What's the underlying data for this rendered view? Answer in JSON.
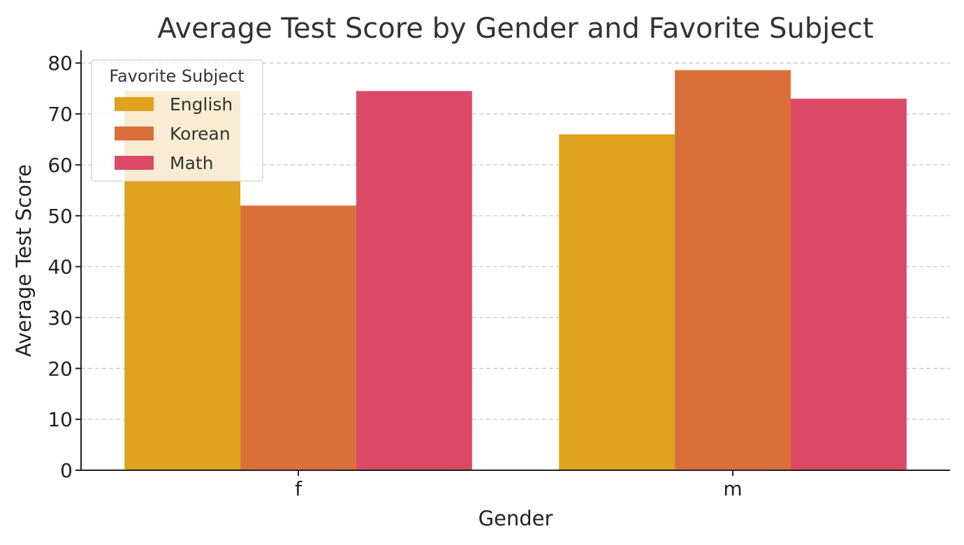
{
  "chart_data": {
    "type": "bar",
    "title": "Average Test Score by Gender and Favorite Subject",
    "xlabel": "Gender",
    "ylabel": "Average Test Score",
    "categories": [
      "f",
      "m"
    ],
    "series": [
      {
        "name": "English",
        "color": "#DFA21F",
        "values": [
          74.5,
          66.0
        ]
      },
      {
        "name": "Korean",
        "color": "#D9703A",
        "values": [
          52.0,
          78.6
        ]
      },
      {
        "name": "Math",
        "color": "#DC4966",
        "values": [
          74.5,
          73.0
        ]
      }
    ],
    "ylim": [
      0,
      82.5
    ],
    "yticks": [
      0,
      10,
      20,
      30,
      40,
      50,
      60,
      70,
      80
    ],
    "grid": true,
    "legend": {
      "title": "Favorite Subject",
      "placement": "top-left"
    }
  }
}
